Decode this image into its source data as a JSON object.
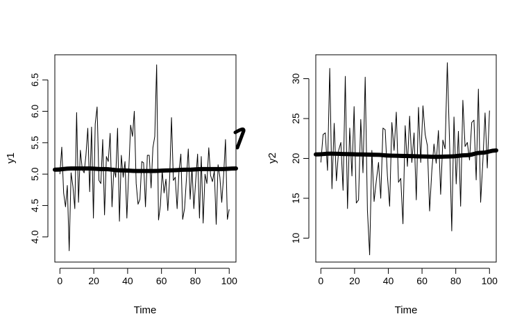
{
  "chart_data": [
    {
      "type": "line",
      "xlabel": "Time",
      "ylabel": "y1",
      "xlim": [
        -3,
        104
      ],
      "ylim": [
        3.6,
        6.9
      ],
      "x_ticks": [
        0,
        20,
        40,
        60,
        80,
        100
      ],
      "x_tick_labels": [
        "0",
        "20",
        "40",
        "60",
        "80",
        "100"
      ],
      "y_ticks": [
        4.0,
        4.5,
        5.0,
        5.5,
        6.0,
        6.5
      ],
      "y_tick_labels": [
        "4.0",
        "4.5",
        "5.0",
        "5.5",
        "6.0",
        "6.5"
      ],
      "grid": false,
      "series": [
        {
          "values": [
            5.0,
            5.43,
            4.7,
            4.48,
            4.82,
            3.78,
            5.02,
            4.8,
            4.45,
            5.98,
            4.55,
            5.38,
            5.08,
            5.02,
            5.3,
            5.73,
            4.72,
            5.75,
            4.3,
            5.8,
            6.07,
            4.9,
            4.85,
            5.55,
            4.35,
            5.28,
            5.2,
            5.65,
            4.48,
            5.1,
            4.95,
            5.73,
            4.25,
            5.3,
            4.95,
            5.2,
            4.3,
            5.05,
            5.78,
            5.6,
            6.0,
            4.85,
            4.52,
            4.6,
            5.2,
            5.18,
            4.48,
            5.3,
            5.3,
            4.78,
            5.42,
            5.6,
            6.74,
            4.27,
            4.5,
            5.05,
            4.7,
            4.92,
            4.42,
            4.95,
            5.9,
            4.9,
            4.95,
            4.45,
            5.05,
            5.32,
            4.28,
            4.45,
            4.92,
            5.4,
            4.6,
            5.1,
            4.45,
            4.9,
            5.32,
            4.3,
            5.28,
            4.22,
            5.0,
            4.85,
            5.42,
            4.98,
            4.88,
            5.05,
            4.2,
            5.15,
            4.95,
            4.55,
            4.98,
            5.55,
            4.28,
            4.44
          ]
        },
        {
          "name": "",
          "values": [
            5.07,
            5.09,
            5.09,
            5.08,
            5.06,
            5.05,
            5.05,
            5.06,
            5.07,
            5.08,
            5.08,
            5.09
          ]
        }
      ]
    },
    {
      "type": "line",
      "xlabel": "Time",
      "ylabel": "y2",
      "xlim": [
        -3,
        104
      ],
      "ylim": [
        7.0,
        33.0
      ],
      "x_ticks": [
        0,
        20,
        40,
        60,
        80,
        100
      ],
      "x_tick_labels": [
        "0",
        "20",
        "40",
        "60",
        "80",
        "100"
      ],
      "y_ticks": [
        10,
        15,
        20,
        25,
        30
      ],
      "y_tick_labels": [
        "10",
        "15",
        "20",
        "25",
        "30"
      ],
      "grid": false,
      "series": [
        {
          "values": [
            19.5,
            23.0,
            23.2,
            18.5,
            31.3,
            16.2,
            24.4,
            17.2,
            21.0,
            22.0,
            16.0,
            30.3,
            13.7,
            23.8,
            17.8,
            26.5,
            14.4,
            14.8,
            24.9,
            18.2,
            30.2,
            13.5,
            7.9,
            21.0,
            14.6,
            17.2,
            19.5,
            15.0,
            23.8,
            23.6,
            17.8,
            14.0,
            24.5,
            21.0,
            25.8,
            17.0,
            17.5,
            11.8,
            24.1,
            19.0,
            25.3,
            19.5,
            23.2,
            14.8,
            26.4,
            19.5,
            26.6,
            23.0,
            21.6,
            13.4,
            18.5,
            21.8,
            19.4,
            23.5,
            15.5,
            22.3,
            21.2,
            32.0,
            22.2,
            10.9,
            25.2,
            16.8,
            23.4,
            14.0,
            27.3,
            21.5,
            22.0,
            19.8,
            24.5,
            24.8,
            17.3,
            28.7,
            14.5,
            19.6,
            25.7,
            18.8,
            26.0
          ]
        },
        {
          "name": "",
          "values": [
            20.5,
            20.6,
            20.55,
            20.5,
            20.45,
            20.35,
            20.3,
            20.25,
            20.2,
            20.25,
            20.4,
            20.7,
            21.0
          ]
        }
      ]
    }
  ]
}
